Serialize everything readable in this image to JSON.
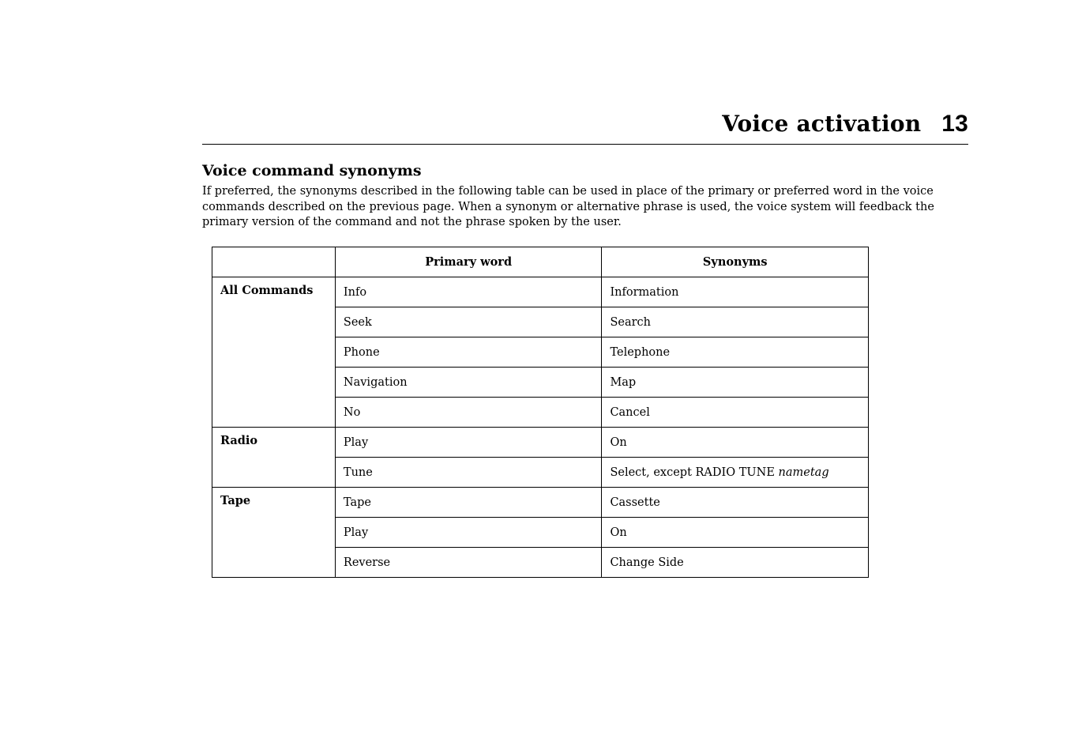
{
  "header": {
    "chapter": "Voice activation",
    "page_number": "13"
  },
  "section": {
    "title": "Voice command synonyms",
    "intro": "If preferred, the synonyms described in the following table can be used in place of the primary or preferred word in the voice commands described on the previous page. When a synonym or alternative phrase is used, the voice system will feedback the primary version of the command and not the phrase spoken by the user."
  },
  "table": {
    "headers": {
      "primary": "Primary word",
      "synonyms": "Synonyms"
    },
    "groups": [
      {
        "category": "All Commands",
        "rows": [
          {
            "primary": "Info",
            "synonym": "Information"
          },
          {
            "primary": "Seek",
            "synonym": "Search"
          },
          {
            "primary": "Phone",
            "synonym": "Telephone"
          },
          {
            "primary": "Navigation",
            "synonym": "Map"
          },
          {
            "primary": "No",
            "synonym": "Cancel"
          }
        ]
      },
      {
        "category": "Radio",
        "rows": [
          {
            "primary": "Play",
            "synonym": "On"
          },
          {
            "primary": "Tune",
            "synonym_prefix": "Select, except RADIO TUNE ",
            "synonym_italic": "nametag"
          }
        ]
      },
      {
        "category": "Tape",
        "rows": [
          {
            "primary": "Tape",
            "synonym": "Cassette"
          },
          {
            "primary": "Play",
            "synonym": "On"
          },
          {
            "primary": "Reverse",
            "synonym": "Change Side"
          }
        ]
      }
    ]
  }
}
